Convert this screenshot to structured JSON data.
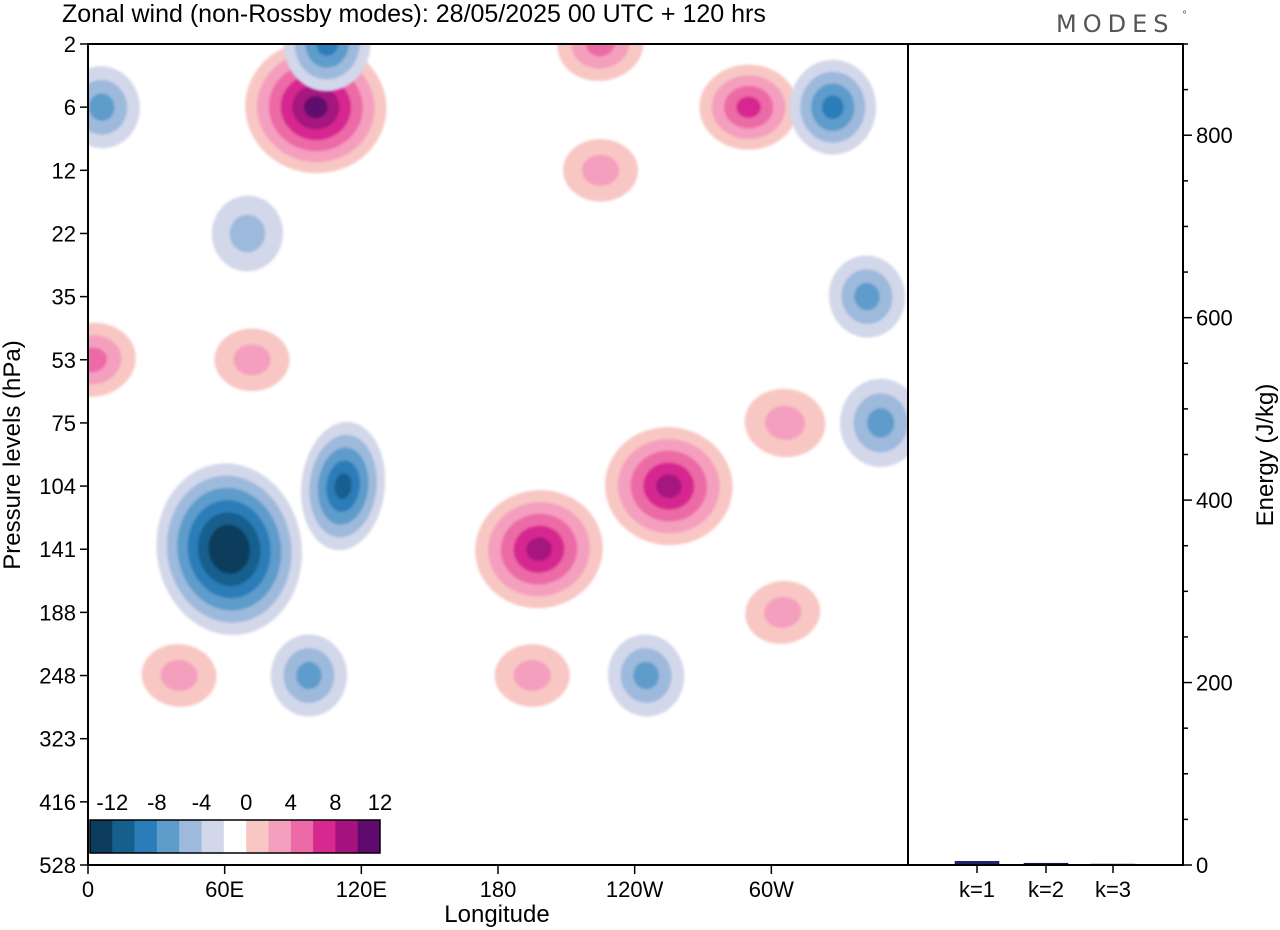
{
  "header": {
    "title": "Zonal wind (non-Rossby modes):  28/05/2025  00 UTC  + 120 hrs",
    "brand": "MODES",
    "brand_mark": "°"
  },
  "colors": {
    "neg": [
      "#0d3d5c",
      "#145f8e",
      "#2a7db8",
      "#5d9ccb",
      "#9db9dc",
      "#d3d7ea"
    ],
    "zero": "#ffffff",
    "pos": [
      "#f8c7c3",
      "#f59fbf",
      "#ec6aa6",
      "#d6288f",
      "#a5137f",
      "#5e0a6e"
    ],
    "bar": "#1a237e",
    "frame": "#000000"
  },
  "chart_data": [
    {
      "type": "heatmap",
      "title": "Zonal wind (non-Rossby modes):  28/05/2025  00 UTC  + 120 hrs",
      "xlabel": "Longitude",
      "ylabel": "Pressure levels (hPa)",
      "x_ticks": [
        "0",
        "60E",
        "120E",
        "180",
        "120W",
        "60W"
      ],
      "x_tick_values": [
        0,
        60,
        120,
        180,
        240,
        300
      ],
      "xlim": [
        0,
        360
      ],
      "y_ticks": [
        "2",
        "6",
        "12",
        "22",
        "35",
        "53",
        "75",
        "104",
        "141",
        "188",
        "248",
        "323",
        "416",
        "528"
      ],
      "colorbar": {
        "labels": [
          "-12",
          "-8",
          "-4",
          "0",
          "4",
          "8",
          "12"
        ],
        "levels": [
          -14,
          -12,
          -10,
          -8,
          -6,
          -4,
          -2,
          2,
          4,
          6,
          8,
          10,
          12
        ]
      },
      "features": [
        {
          "name": "easterly max",
          "lon": 62,
          "level": "141",
          "value": -14
        },
        {
          "name": "easterly core",
          "lon": 112,
          "level": "104",
          "value": -9
        },
        {
          "name": "easterly",
          "lon": 97,
          "level": "248",
          "value": -5
        },
        {
          "name": "westerly max",
          "lon": 198,
          "level": "141",
          "value": 9
        },
        {
          "name": "westerly max",
          "lon": 255,
          "level": "104",
          "value": 9
        },
        {
          "name": "westerly",
          "lon": 195,
          "level": "248",
          "value": 3
        },
        {
          "name": "easterly",
          "lon": 245,
          "level": "248",
          "value": -5
        },
        {
          "name": "westerly",
          "lon": 306,
          "level": "75",
          "value": 4
        },
        {
          "name": "easterly",
          "lon": 348,
          "level": "75",
          "value": -6
        },
        {
          "name": "easterly",
          "lon": 342,
          "level": "35",
          "value": -5
        },
        {
          "name": "westerly max",
          "lon": 100,
          "level": "6",
          "value": 11
        },
        {
          "name": "westerly",
          "lon": 290,
          "level": "6",
          "value": 7
        },
        {
          "name": "westerly",
          "lon": 225,
          "level": "2",
          "value": 5
        },
        {
          "name": "easterly",
          "lon": 105,
          "level": "2",
          "value": -7
        },
        {
          "name": "easterly",
          "lon": 327,
          "level": "6",
          "value": -7
        },
        {
          "name": "easterly",
          "lon": 6,
          "level": "6",
          "value": -5
        },
        {
          "name": "easterly",
          "lon": 70,
          "level": "22",
          "value": -4
        },
        {
          "name": "westerly",
          "lon": 72,
          "level": "53",
          "value": 3
        },
        {
          "name": "westerly",
          "lon": 2,
          "level": "53",
          "value": 5
        },
        {
          "name": "westerly",
          "lon": 40,
          "level": "248",
          "value": 3
        },
        {
          "name": "westerly",
          "lon": 225,
          "level": "12",
          "value": 3
        },
        {
          "name": "westerly",
          "lon": 305,
          "level": "188",
          "value": 3
        }
      ]
    },
    {
      "type": "bar",
      "ylabel": "Energy (J/kg)",
      "categories": [
        "k=1",
        "k=2",
        "k=3"
      ],
      "values": [
        4,
        2,
        1
      ],
      "ylim": [
        0,
        900
      ],
      "y_ticks": [
        "0",
        "200",
        "400",
        "600",
        "800"
      ],
      "y_tick_values": [
        0,
        200,
        400,
        600,
        800
      ]
    }
  ]
}
